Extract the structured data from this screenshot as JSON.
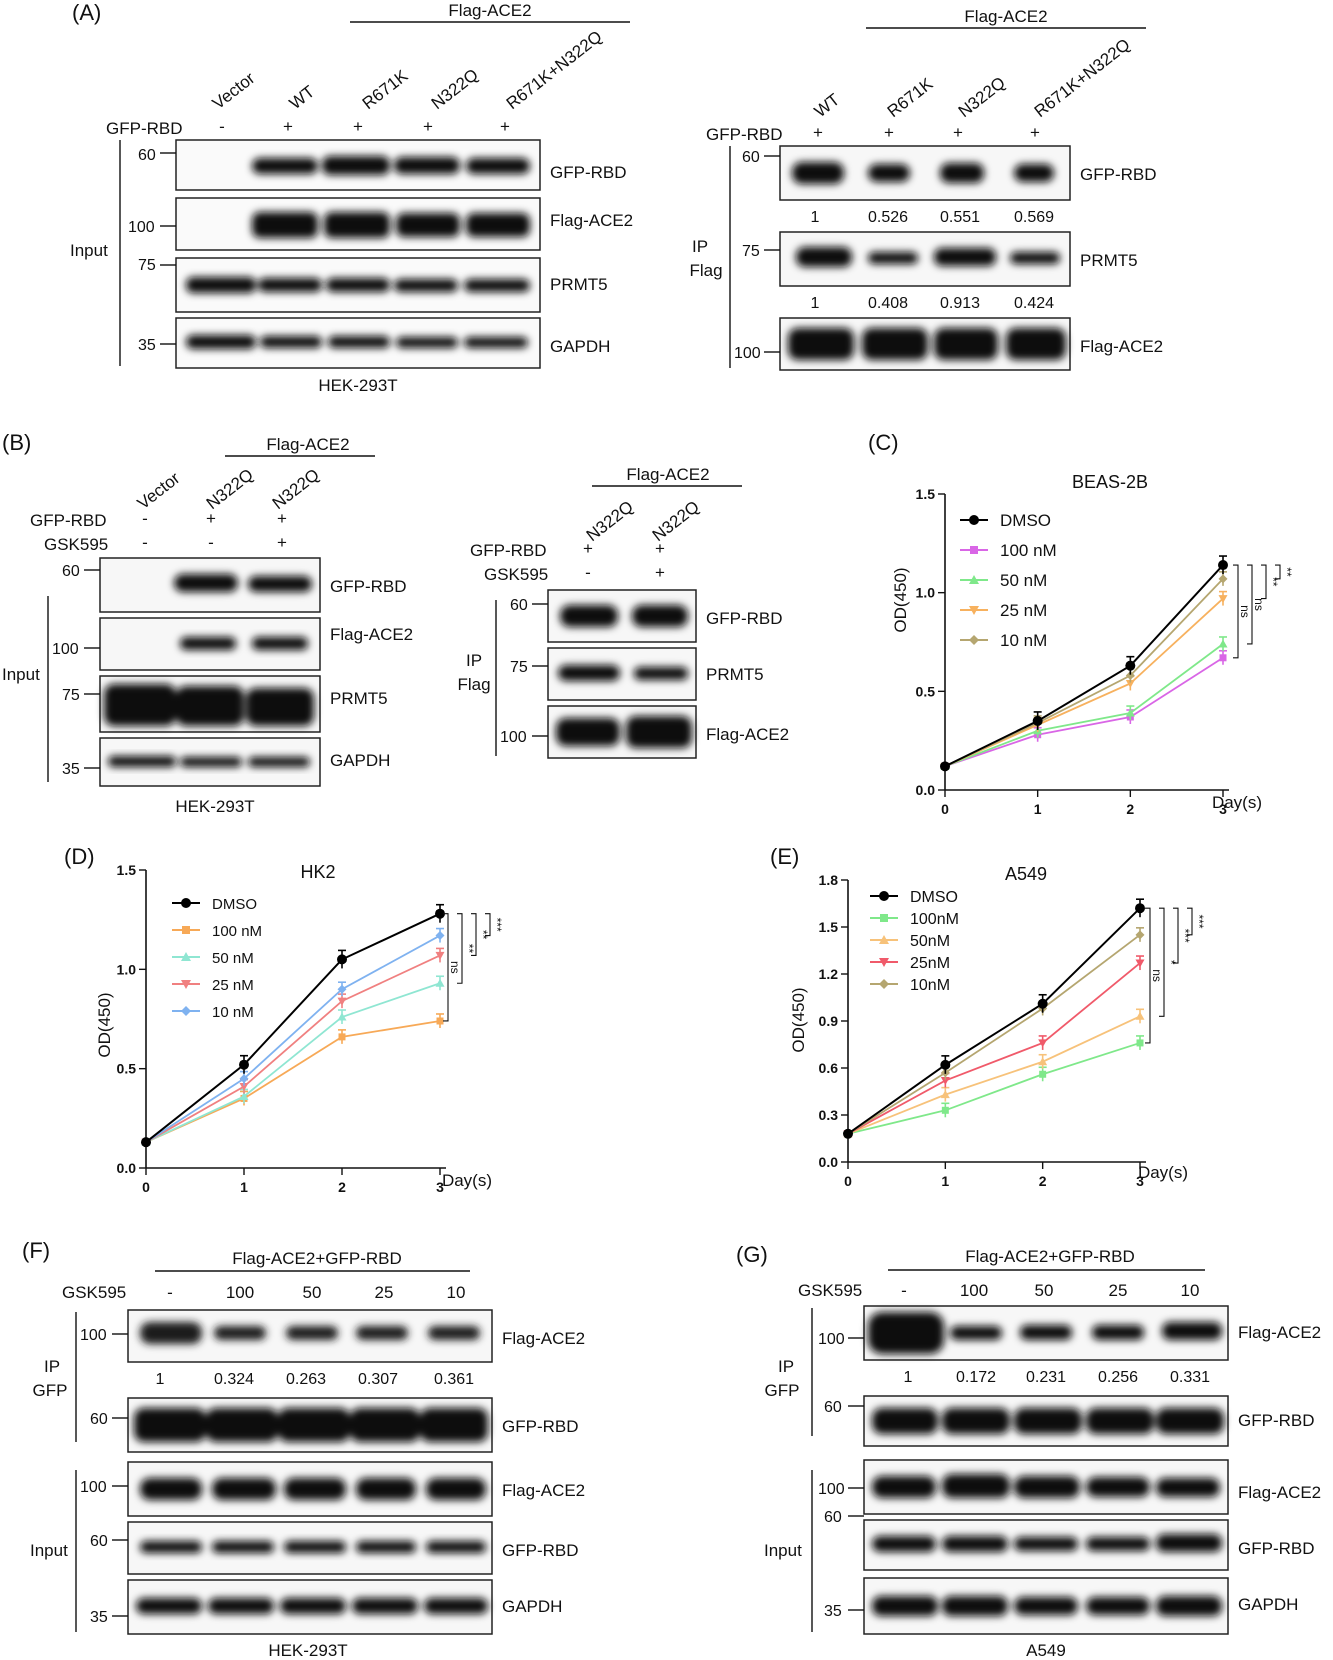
{
  "panels": {
    "A": {
      "letter": "(A)",
      "header": "Flag-ACE2",
      "lanes": [
        "Vector",
        "WT",
        "R671K",
        "N322Q",
        "R671K+N322Q"
      ],
      "gfp_row": {
        "label": "GFP-RBD",
        "signs": [
          "-",
          "+",
          "+",
          "+",
          "+"
        ]
      },
      "blots": [
        {
          "name": "GFP-RBD",
          "mw": "60",
          "intensity": [
            0,
            1,
            1,
            1,
            1
          ]
        },
        {
          "name": "Flag-ACE2",
          "mw": "100",
          "intensity": [
            0,
            1,
            1,
            1,
            1
          ]
        },
        {
          "name": "PRMT5",
          "mw": "75",
          "intensity": [
            1,
            1,
            1,
            1,
            1
          ]
        },
        {
          "name": "GAPDH",
          "mw": "35",
          "intensity": [
            1,
            1,
            1,
            1,
            1
          ]
        }
      ],
      "group_label": "Input",
      "cell_line": "HEK-293T"
    },
    "A_right": {
      "header": "Flag-ACE2",
      "lanes": [
        "WT",
        "R671K",
        "N322Q",
        "R671K+N322Q"
      ],
      "gfp_row": {
        "label": "GFP-RBD",
        "signs": [
          "+",
          "+",
          "+",
          "+"
        ]
      },
      "blots": [
        {
          "name": "GFP-RBD",
          "mw": "60",
          "quant": [
            "1",
            "0.526",
            "0.551",
            "0.569"
          ]
        },
        {
          "name": "PRMT5",
          "mw": "75",
          "quant": [
            "1",
            "0.408",
            "0.913",
            "0.424"
          ]
        },
        {
          "name": "Flag-ACE2",
          "mw": "100"
        }
      ],
      "group_label": [
        "IP",
        "Flag"
      ]
    },
    "B": {
      "letter": "(B)",
      "header": "Flag-ACE2",
      "lanes": [
        "Vector",
        "N322Q",
        "N322Q"
      ],
      "rows": [
        {
          "label": "GFP-RBD",
          "signs": [
            "-",
            "+",
            "+"
          ]
        },
        {
          "label": "GSK595",
          "signs": [
            "-",
            "-",
            "+"
          ]
        }
      ],
      "blots": [
        {
          "name": "GFP-RBD",
          "mw": "60"
        },
        {
          "name": "Flag-ACE2",
          "mw": "100"
        },
        {
          "name": "PRMT5",
          "mw": "75"
        },
        {
          "name": "GAPDH",
          "mw": "35"
        }
      ],
      "group_label": "Input",
      "cell_line": "HEK-293T"
    },
    "B_right": {
      "header": "Flag-ACE2",
      "lanes": [
        "N322Q",
        "N322Q"
      ],
      "rows": [
        {
          "label": "GFP-RBD",
          "signs": [
            "+",
            "+"
          ]
        },
        {
          "label": "GSK595",
          "signs": [
            "-",
            "+"
          ]
        }
      ],
      "blots": [
        {
          "name": "GFP-RBD",
          "mw": "60"
        },
        {
          "name": "PRMT5",
          "mw": "75"
        },
        {
          "name": "Flag-ACE2",
          "mw": "100"
        }
      ],
      "group_label": [
        "IP",
        "Flag"
      ]
    },
    "F": {
      "letter": "(F)",
      "header": "Flag-ACE2+GFP-RBD",
      "treat_label": "GSK595",
      "doses": [
        "-",
        "100",
        "50",
        "25",
        "10"
      ],
      "ip_blots": [
        {
          "name": "Flag-ACE2",
          "mw": "100",
          "quant": [
            "1",
            "0.324",
            "0.263",
            "0.307",
            "0.361"
          ]
        },
        {
          "name": "GFP-RBD",
          "mw": "60"
        }
      ],
      "input_blots": [
        {
          "name": "Flag-ACE2",
          "mw": "100"
        },
        {
          "name": "GFP-RBD",
          "mw": "60"
        },
        {
          "name": "GAPDH",
          "mw": "35"
        }
      ],
      "ip_label": [
        "IP",
        "GFP"
      ],
      "input_label": "Input",
      "cell_line": "HEK-293T"
    },
    "G": {
      "letter": "(G)",
      "header": "Flag-ACE2+GFP-RBD",
      "treat_label": "GSK595",
      "doses": [
        "-",
        "100",
        "50",
        "25",
        "10"
      ],
      "ip_blots": [
        {
          "name": "Flag-ACE2",
          "mw": "100",
          "quant": [
            "1",
            "0.172",
            "0.231",
            "0.256",
            "0.331"
          ]
        },
        {
          "name": "GFP-RBD",
          "mw": "60"
        }
      ],
      "input_blots": [
        {
          "name": "Flag-ACE2",
          "mw": "100"
        },
        {
          "name": "GFP-RBD",
          "mw": "60"
        },
        {
          "name": "GAPDH",
          "mw": "35"
        }
      ],
      "ip_label": [
        "IP",
        "GFP"
      ],
      "input_label": "Input",
      "cell_line": "A549"
    }
  },
  "chart_data": [
    {
      "panel": "(C)",
      "type": "line",
      "title": "BEAS-2B",
      "xlabel": "Day(s)",
      "ylabel": "OD(450)",
      "x": [
        0,
        1,
        2,
        3
      ],
      "xlim": [
        0,
        3
      ],
      "ylim": [
        0,
        1.5
      ],
      "yticks": [
        "0.0",
        "0.5",
        "1.0",
        "1.5"
      ],
      "xticks": [
        "0",
        "1",
        "2",
        "3"
      ],
      "legend": "top-left",
      "series": [
        {
          "name": "DMSO",
          "color": "#000000",
          "marker": "circle",
          "values": [
            0.12,
            0.35,
            0.63,
            1.14
          ]
        },
        {
          "name": "100 nM",
          "color": "#d966e6",
          "marker": "square",
          "values": [
            0.12,
            0.28,
            0.37,
            0.67
          ]
        },
        {
          "name": "50 nM",
          "color": "#7fe88a",
          "marker": "triangle",
          "values": [
            0.12,
            0.3,
            0.39,
            0.74
          ]
        },
        {
          "name": "25 nM",
          "color": "#f7b15e",
          "marker": "tri-down",
          "values": [
            0.12,
            0.33,
            0.54,
            0.97
          ]
        },
        {
          "name": "10 nM",
          "color": "#b5a670",
          "marker": "diamond",
          "values": [
            0.12,
            0.34,
            0.58,
            1.07
          ]
        }
      ],
      "significance": [
        "ns",
        "ns",
        "**",
        "**"
      ]
    },
    {
      "panel": "(D)",
      "type": "line",
      "title": "HK2",
      "xlabel": "Day(s)",
      "ylabel": "OD(450)",
      "x": [
        0,
        1,
        2,
        3
      ],
      "xlim": [
        0,
        3
      ],
      "ylim": [
        0,
        1.5
      ],
      "yticks": [
        "0.0",
        "0.5",
        "1.0",
        "1.5"
      ],
      "xticks": [
        "0",
        "1",
        "2",
        "3"
      ],
      "legend": "top-left",
      "series": [
        {
          "name": "DMSO",
          "color": "#000000",
          "marker": "circle",
          "values": [
            0.13,
            0.52,
            1.05,
            1.28
          ]
        },
        {
          "name": "100 nM",
          "color": "#f7a957",
          "marker": "square",
          "values": [
            0.13,
            0.35,
            0.66,
            0.74
          ]
        },
        {
          "name": "50 nM",
          "color": "#8fe6d2",
          "marker": "triangle",
          "values": [
            0.13,
            0.36,
            0.76,
            0.93
          ]
        },
        {
          "name": "25 nM",
          "color": "#f08080",
          "marker": "tri-down",
          "values": [
            0.13,
            0.41,
            0.84,
            1.07
          ]
        },
        {
          "name": "10 nM",
          "color": "#7fb2f0",
          "marker": "diamond",
          "values": [
            0.13,
            0.45,
            0.9,
            1.17
          ]
        }
      ],
      "significance": [
        "ns",
        "**",
        "**",
        "***"
      ]
    },
    {
      "panel": "(E)",
      "type": "line",
      "title": "A549",
      "xlabel": "Day(s)",
      "ylabel": "OD(450)",
      "x": [
        0,
        1,
        2,
        3
      ],
      "xlim": [
        0,
        3
      ],
      "ylim": [
        0,
        1.8
      ],
      "yticks": [
        "0.0",
        "0.3",
        "0.6",
        "0.9",
        "1.2",
        "1.5",
        "1.8"
      ],
      "xticks": [
        "0",
        "1",
        "2",
        "3"
      ],
      "legend": "top-left",
      "series": [
        {
          "name": "DMSO",
          "color": "#000000",
          "marker": "circle",
          "values": [
            0.18,
            0.62,
            1.01,
            1.62
          ]
        },
        {
          "name": "100nM",
          "color": "#7fe88a",
          "marker": "square",
          "values": [
            0.18,
            0.33,
            0.56,
            0.76
          ]
        },
        {
          "name": "50nM",
          "color": "#f7c27a",
          "marker": "triangle",
          "values": [
            0.18,
            0.43,
            0.64,
            0.93
          ]
        },
        {
          "name": "25nM",
          "color": "#f05a6a",
          "marker": "tri-down",
          "values": [
            0.18,
            0.52,
            0.76,
            1.27
          ]
        },
        {
          "name": "10nM",
          "color": "#b5a670",
          "marker": "diamond",
          "values": [
            0.18,
            0.57,
            0.98,
            1.45
          ]
        }
      ],
      "significance": [
        "ns",
        "*",
        "***",
        "***"
      ]
    }
  ]
}
